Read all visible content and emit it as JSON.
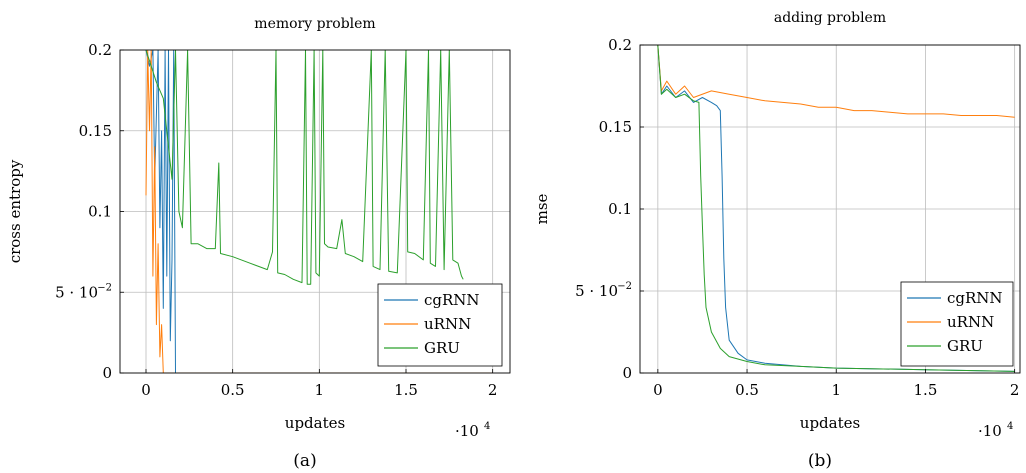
{
  "chart_data": [
    {
      "type": "line",
      "title": "memory problem",
      "xlabel": "updates",
      "ylabel": "cross entropy",
      "x_multiplier": "·10",
      "x_multiplier_exp": "4",
      "caption": "(a)",
      "xlim": [
        -0.15,
        2.1
      ],
      "ylim": [
        0,
        0.2
      ],
      "x_ticks": [
        0,
        0.5,
        1,
        1.5,
        2
      ],
      "x_tick_labels": [
        "0",
        "0.5",
        "1",
        "1.5",
        "2"
      ],
      "y_ticks": [
        0,
        0.05,
        0.1,
        0.15,
        0.2
      ],
      "y_tick_labels": [
        "0",
        "5 · 10",
        "0.1",
        "0.15",
        "0.2"
      ],
      "y_tick_exp": [
        "",
        "−2",
        "",
        "",
        ""
      ],
      "grid": true,
      "legend_position": "bottom-right",
      "series": [
        {
          "name": "cgRNN",
          "color": "#1f77b4",
          "points": [
            [
              0.0,
              0.2
            ],
            [
              0.02,
              0.19
            ],
            [
              0.04,
              0.2
            ],
            [
              0.05,
              0.12
            ],
            [
              0.07,
              0.2
            ],
            [
              0.08,
              0.09
            ],
            [
              0.09,
              0.15
            ],
            [
              0.1,
              0.04
            ],
            [
              0.11,
              0.2
            ],
            [
              0.12,
              0.06
            ],
            [
              0.13,
              0.2
            ],
            [
              0.14,
              0.02
            ],
            [
              0.15,
              0.07
            ],
            [
              0.16,
              0.2
            ],
            [
              0.17,
              0.0
            ],
            [
              0.2,
              0.0
            ],
            [
              0.5,
              0.0
            ],
            [
              1.0,
              0.0
            ],
            [
              1.5,
              0.0
            ],
            [
              2.0,
              0.0
            ]
          ]
        },
        {
          "name": "uRNN",
          "color": "#ff7f0e",
          "points": [
            [
              0.0,
              0.11
            ],
            [
              0.01,
              0.2
            ],
            [
              0.02,
              0.15
            ],
            [
              0.03,
              0.2
            ],
            [
              0.04,
              0.06
            ],
            [
              0.05,
              0.14
            ],
            [
              0.06,
              0.03
            ],
            [
              0.07,
              0.08
            ],
            [
              0.08,
              0.01
            ],
            [
              0.09,
              0.03
            ],
            [
              0.1,
              0.0
            ],
            [
              0.3,
              0.0
            ],
            [
              0.5,
              0.0
            ],
            [
              1.0,
              0.0
            ],
            [
              1.5,
              0.0
            ],
            [
              2.0,
              0.0
            ]
          ]
        },
        {
          "name": "GRU",
          "color": "#2ca02c",
          "points": [
            [
              0.0,
              0.2
            ],
            [
              0.03,
              0.19
            ],
            [
              0.06,
              0.18
            ],
            [
              0.1,
              0.17
            ],
            [
              0.13,
              0.14
            ],
            [
              0.15,
              0.12
            ],
            [
              0.17,
              0.2
            ],
            [
              0.19,
              0.1
            ],
            [
              0.21,
              0.09
            ],
            [
              0.24,
              0.2
            ],
            [
              0.26,
              0.08
            ],
            [
              0.3,
              0.08
            ],
            [
              0.35,
              0.077
            ],
            [
              0.4,
              0.077
            ],
            [
              0.42,
              0.13
            ],
            [
              0.43,
              0.074
            ],
            [
              0.5,
              0.072
            ],
            [
              0.6,
              0.068
            ],
            [
              0.7,
              0.064
            ],
            [
              0.73,
              0.075
            ],
            [
              0.75,
              0.2
            ],
            [
              0.76,
              0.062
            ],
            [
              0.8,
              0.061
            ],
            [
              0.85,
              0.058
            ],
            [
              0.9,
              0.056
            ],
            [
              0.92,
              0.2
            ],
            [
              0.93,
              0.055
            ],
            [
              0.95,
              0.055
            ],
            [
              0.97,
              0.2
            ],
            [
              0.98,
              0.062
            ],
            [
              1.0,
              0.06
            ],
            [
              1.02,
              0.2
            ],
            [
              1.03,
              0.08
            ],
            [
              1.05,
              0.078
            ],
            [
              1.1,
              0.077
            ],
            [
              1.13,
              0.095
            ],
            [
              1.15,
              0.074
            ],
            [
              1.2,
              0.072
            ],
            [
              1.25,
              0.069
            ],
            [
              1.3,
              0.2
            ],
            [
              1.31,
              0.066
            ],
            [
              1.35,
              0.064
            ],
            [
              1.38,
              0.2
            ],
            [
              1.4,
              0.063
            ],
            [
              1.45,
              0.062
            ],
            [
              1.5,
              0.2
            ],
            [
              1.51,
              0.075
            ],
            [
              1.55,
              0.074
            ],
            [
              1.6,
              0.07
            ],
            [
              1.63,
              0.2
            ],
            [
              1.64,
              0.068
            ],
            [
              1.67,
              0.066
            ],
            [
              1.7,
              0.2
            ],
            [
              1.72,
              0.064
            ],
            [
              1.75,
              0.2
            ],
            [
              1.77,
              0.07
            ],
            [
              1.8,
              0.068
            ],
            [
              1.82,
              0.06
            ],
            [
              1.83,
              0.058
            ]
          ]
        }
      ]
    },
    {
      "type": "line",
      "title": "adding problem",
      "xlabel": "updates",
      "ylabel": "mse",
      "x_multiplier": "·10",
      "x_multiplier_exp": "4",
      "caption": "(b)",
      "xlim": [
        -0.1,
        2.03
      ],
      "ylim": [
        0,
        0.2
      ],
      "x_ticks": [
        0,
        0.5,
        1,
        1.5,
        2
      ],
      "x_tick_labels": [
        "0",
        "0.5",
        "1",
        "1.5",
        "2"
      ],
      "y_ticks": [
        0,
        0.05,
        0.1,
        0.15,
        0.2
      ],
      "y_tick_labels": [
        "0",
        "5 · 10",
        "0.1",
        "0.15",
        "0.2"
      ],
      "y_tick_exp": [
        "",
        "−2",
        "",
        "",
        ""
      ],
      "grid": true,
      "legend_position": "bottom-right",
      "series": [
        {
          "name": "cgRNN",
          "color": "#1f77b4",
          "points": [
            [
              0.0,
              0.2
            ],
            [
              0.02,
              0.17
            ],
            [
              0.05,
              0.175
            ],
            [
              0.1,
              0.168
            ],
            [
              0.15,
              0.172
            ],
            [
              0.2,
              0.165
            ],
            [
              0.25,
              0.168
            ],
            [
              0.3,
              0.165
            ],
            [
              0.33,
              0.163
            ],
            [
              0.35,
              0.16
            ],
            [
              0.36,
              0.12
            ],
            [
              0.37,
              0.07
            ],
            [
              0.38,
              0.04
            ],
            [
              0.4,
              0.02
            ],
            [
              0.45,
              0.012
            ],
            [
              0.5,
              0.008
            ],
            [
              0.6,
              0.006
            ],
            [
              0.8,
              0.004
            ],
            [
              1.0,
              0.003
            ],
            [
              1.5,
              0.002
            ],
            [
              2.0,
              0.001
            ]
          ]
        },
        {
          "name": "uRNN",
          "color": "#ff7f0e",
          "points": [
            [
              0.0,
              0.2
            ],
            [
              0.02,
              0.172
            ],
            [
              0.05,
              0.178
            ],
            [
              0.1,
              0.17
            ],
            [
              0.15,
              0.175
            ],
            [
              0.2,
              0.168
            ],
            [
              0.3,
              0.172
            ],
            [
              0.4,
              0.17
            ],
            [
              0.5,
              0.168
            ],
            [
              0.6,
              0.166
            ],
            [
              0.7,
              0.165
            ],
            [
              0.8,
              0.164
            ],
            [
              0.9,
              0.162
            ],
            [
              1.0,
              0.162
            ],
            [
              1.1,
              0.16
            ],
            [
              1.2,
              0.16
            ],
            [
              1.3,
              0.159
            ],
            [
              1.4,
              0.158
            ],
            [
              1.5,
              0.158
            ],
            [
              1.6,
              0.158
            ],
            [
              1.7,
              0.157
            ],
            [
              1.8,
              0.157
            ],
            [
              1.9,
              0.157
            ],
            [
              2.0,
              0.156
            ]
          ]
        },
        {
          "name": "GRU",
          "color": "#2ca02c",
          "points": [
            [
              0.0,
              0.2
            ],
            [
              0.02,
              0.17
            ],
            [
              0.05,
              0.173
            ],
            [
              0.1,
              0.168
            ],
            [
              0.15,
              0.17
            ],
            [
              0.2,
              0.166
            ],
            [
              0.23,
              0.165
            ],
            [
              0.24,
              0.12
            ],
            [
              0.25,
              0.09
            ],
            [
              0.26,
              0.06
            ],
            [
              0.27,
              0.04
            ],
            [
              0.3,
              0.025
            ],
            [
              0.35,
              0.015
            ],
            [
              0.4,
              0.01
            ],
            [
              0.5,
              0.007
            ],
            [
              0.6,
              0.005
            ],
            [
              0.8,
              0.004
            ],
            [
              1.0,
              0.003
            ],
            [
              1.5,
              0.002
            ],
            [
              2.0,
              0.001
            ]
          ]
        }
      ]
    }
  ]
}
